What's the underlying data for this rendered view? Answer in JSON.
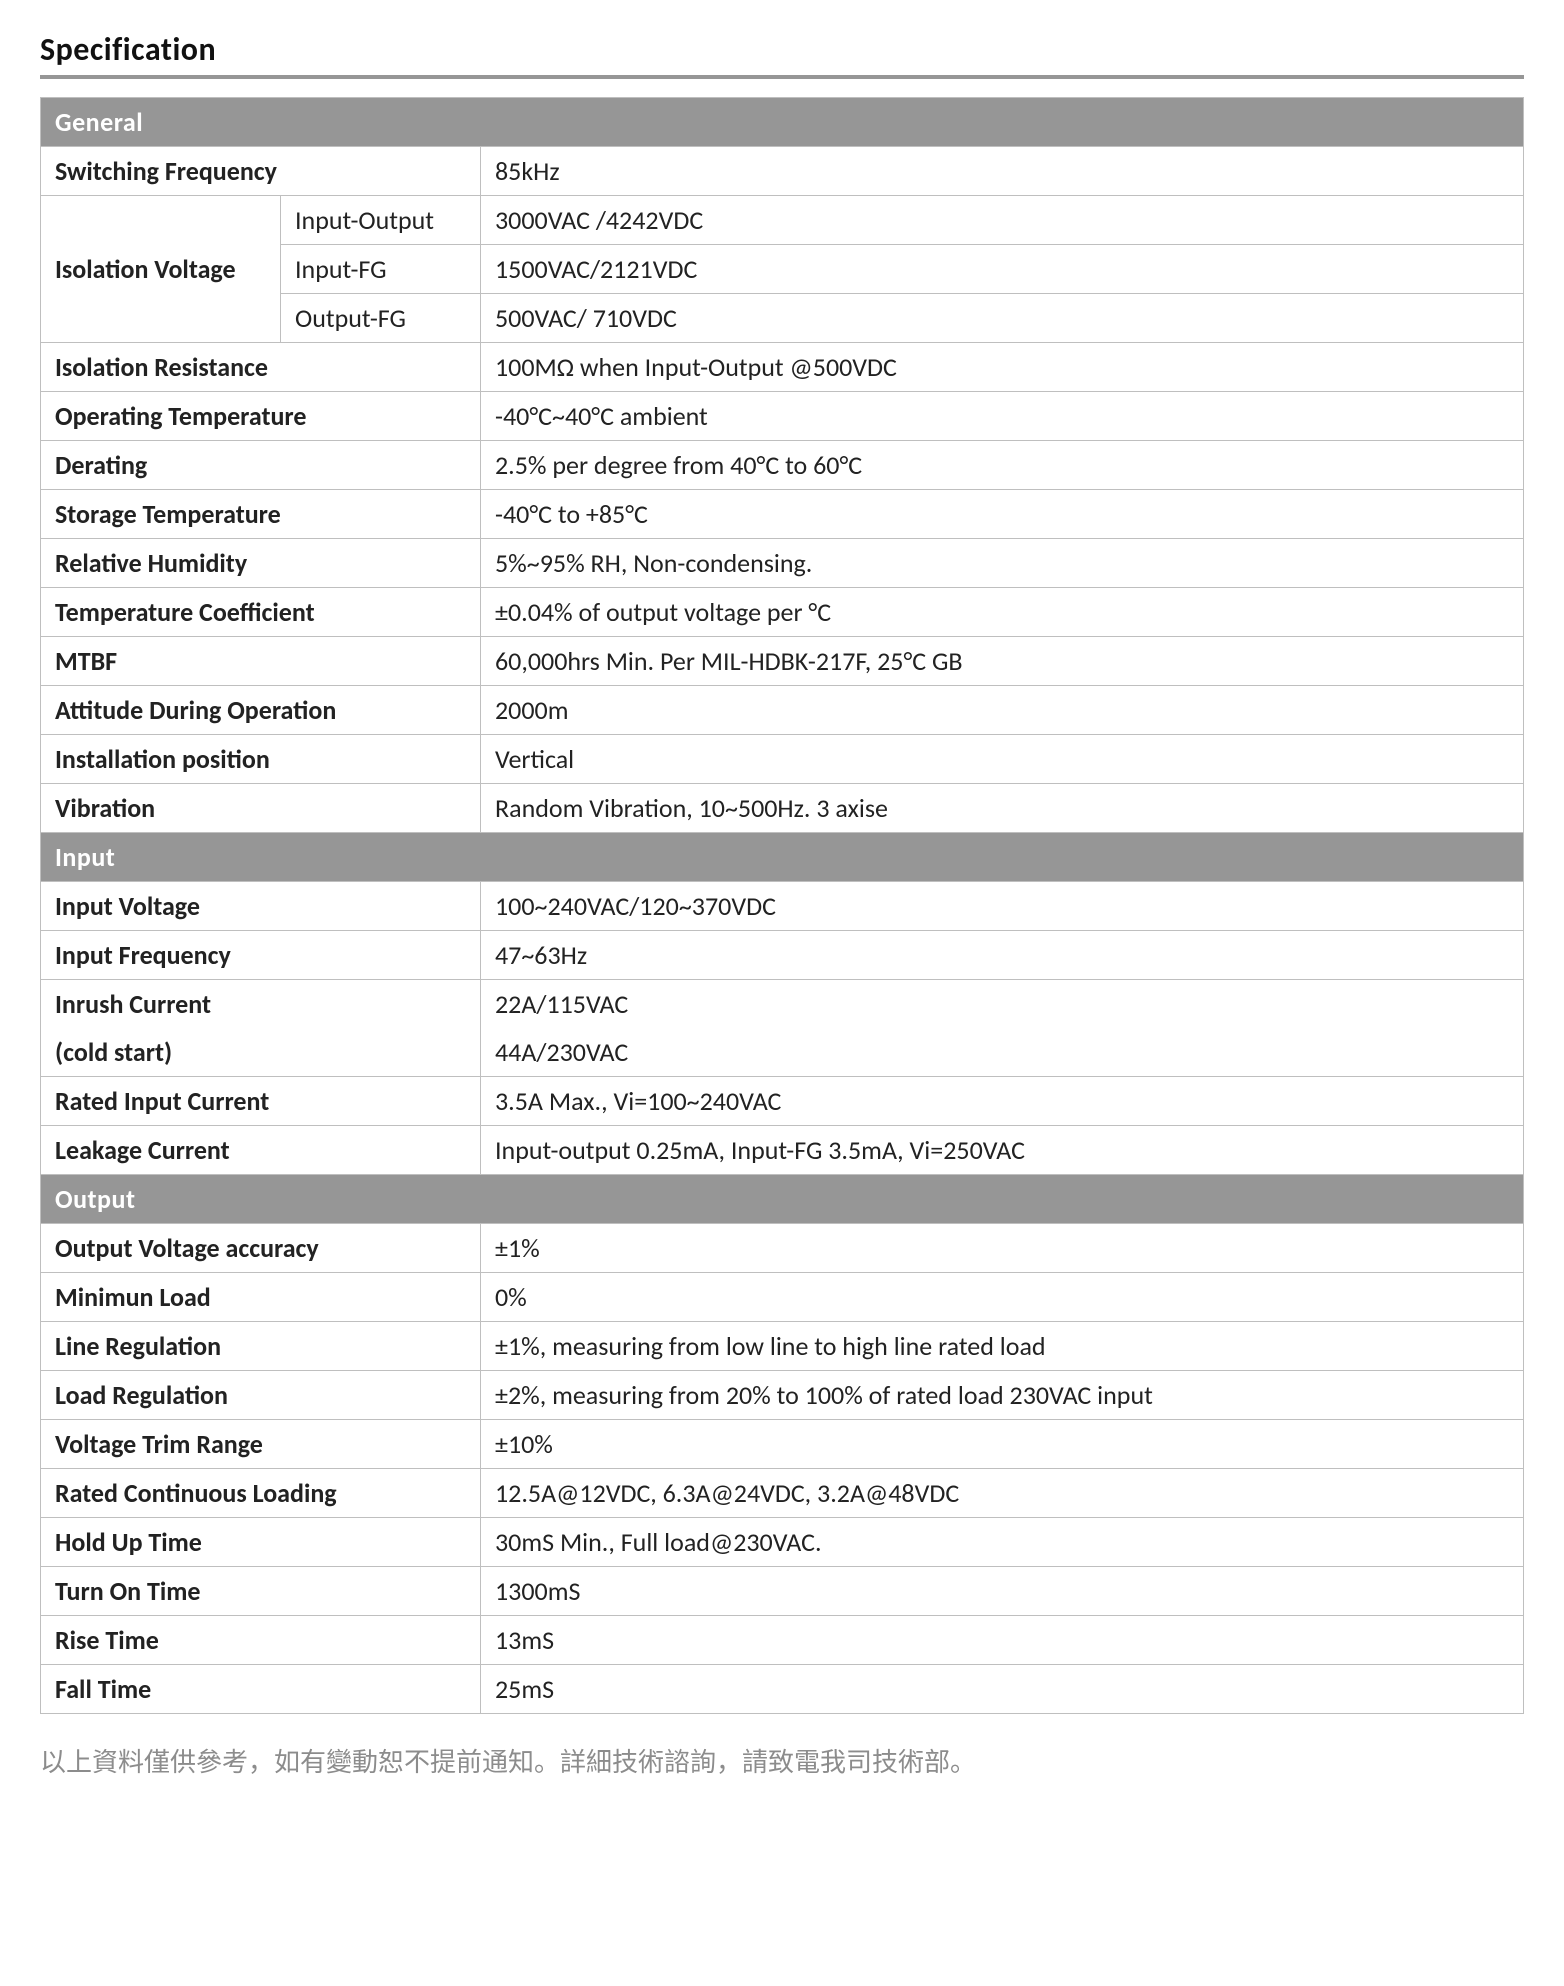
{
  "page_title": "Specification",
  "colors": {
    "header_bg": "#969696",
    "header_text": "#ffffff",
    "border": "#bfbfbf",
    "title_rule": "#969696",
    "footnote_text": "#8c8c8c",
    "body_text": "#222222"
  },
  "sections": {
    "general": {
      "title": "General",
      "rows": {
        "switching_frequency": {
          "label": "Switching Frequency",
          "value": "85kHz"
        },
        "isolation_voltage": {
          "label": "Isolation Voltage",
          "sub": [
            {
              "label": "Input-Output",
              "value": "3000VAC /4242VDC"
            },
            {
              "label": "Input-FG",
              "value": "1500VAC/2121VDC"
            },
            {
              "label": "Output-FG",
              "value": "500VAC/ 710VDC"
            }
          ]
        },
        "isolation_resistance": {
          "label": "Isolation Resistance",
          "value": "100MΩ when Input-Output @500VDC"
        },
        "operating_temperature": {
          "label": "Operating Temperature",
          "value": "-40°C~40°C ambient"
        },
        "derating": {
          "label": "Derating",
          "value": "2.5% per degree from 40°C to 60°C"
        },
        "storage_temperature": {
          "label": "Storage Temperature",
          "value": "-40°C to +85°C"
        },
        "relative_humidity": {
          "label": "Relative Humidity",
          "value": "5%~95% RH, Non-condensing."
        },
        "temperature_coefficient": {
          "label": "Temperature Coefficient",
          "value": "±0.04% of output voltage per °C"
        },
        "mtbf": {
          "label": "MTBF",
          "value": "60,000hrs Min. Per MIL-HDBK-217F, 25°C GB"
        },
        "attitude_during_operation": {
          "label": "Attitude During Operation",
          "value": "2000m"
        },
        "installation_position": {
          "label": "Installation position",
          "value": "Vertical"
        },
        "vibration": {
          "label": "Vibration",
          "value": "Random Vibration, 10~500Hz. 3 axise"
        }
      }
    },
    "input": {
      "title": "Input",
      "rows": {
        "input_voltage": {
          "label": "Input Voltage",
          "value": "100~240VAC/120~370VDC"
        },
        "input_frequency": {
          "label": "Input Frequency",
          "value": "47~63Hz"
        },
        "inrush_current_1": {
          "label": "Inrush Current",
          "value": "22A/115VAC"
        },
        "inrush_current_2": {
          "label": "(cold start)",
          "value": "44A/230VAC"
        },
        "rated_input_current": {
          "label": "Rated Input Current",
          "value": "3.5A Max., Vi=100~240VAC"
        },
        "leakage_current": {
          "label": "Leakage Current",
          "value": "Input-output 0.25mA, Input-FG 3.5mA, Vi=250VAC"
        }
      }
    },
    "output": {
      "title": "Output",
      "rows": {
        "output_voltage_accuracy": {
          "label": "Output Voltage accuracy",
          "value": "±1%"
        },
        "minimum_load": {
          "label": "Minimun Load",
          "value": "0%"
        },
        "line_regulation": {
          "label": "Line Regulation",
          "value": "±1%, measuring from low line to high line rated load"
        },
        "load_regulation": {
          "label": "Load Regulation",
          "value": "±2%, measuring from 20% to 100% of rated load 230VAC input"
        },
        "voltage_trim_range": {
          "label": "Voltage Trim Range",
          "value": "±10%"
        },
        "rated_continuous_loading": {
          "label": "Rated Continuous Loading",
          "value": "12.5A@12VDC, 6.3A@24VDC, 3.2A@48VDC"
        },
        "hold_up_time": {
          "label": "Hold Up Time",
          "value": "30mS Min., Full load@230VAC."
        },
        "turn_on_time": {
          "label": "Turn On Time",
          "value": "1300mS"
        },
        "rise_time": {
          "label": "Rise Time",
          "value": "13mS"
        },
        "fall_time": {
          "label": "Fall Time",
          "value": "25mS"
        }
      }
    }
  },
  "footnote": "以上資料僅供參考，如有變動恕不提前通知。詳細技術諮詢，請致電我司技術部。"
}
